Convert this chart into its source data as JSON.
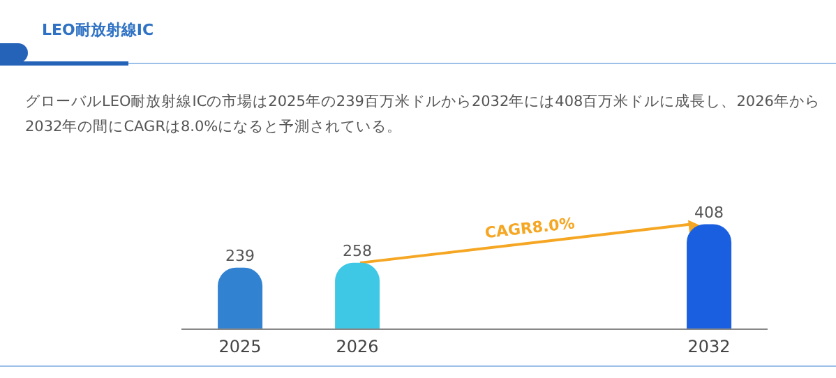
{
  "chart_data": {
    "type": "bar",
    "title": "LEO耐放射線IC",
    "subtitle": "グローバルLEO耐放射線ICの市場は2025年の239百万米ドルから2032年には408百万米ドルに成長し、2026年から2032年の間にCAGRは8.0%になると予測されている。",
    "categories": [
      "2025",
      "2026",
      null,
      null,
      "2032"
    ],
    "values": [
      239,
      258,
      null,
      null,
      408
    ],
    "colors": [
      "#3282d2",
      "#3ec8e6",
      null,
      null,
      "#1a5fdf"
    ],
    "data_labels": true,
    "annotations": [
      "CAGR8.0%"
    ]
  }
}
